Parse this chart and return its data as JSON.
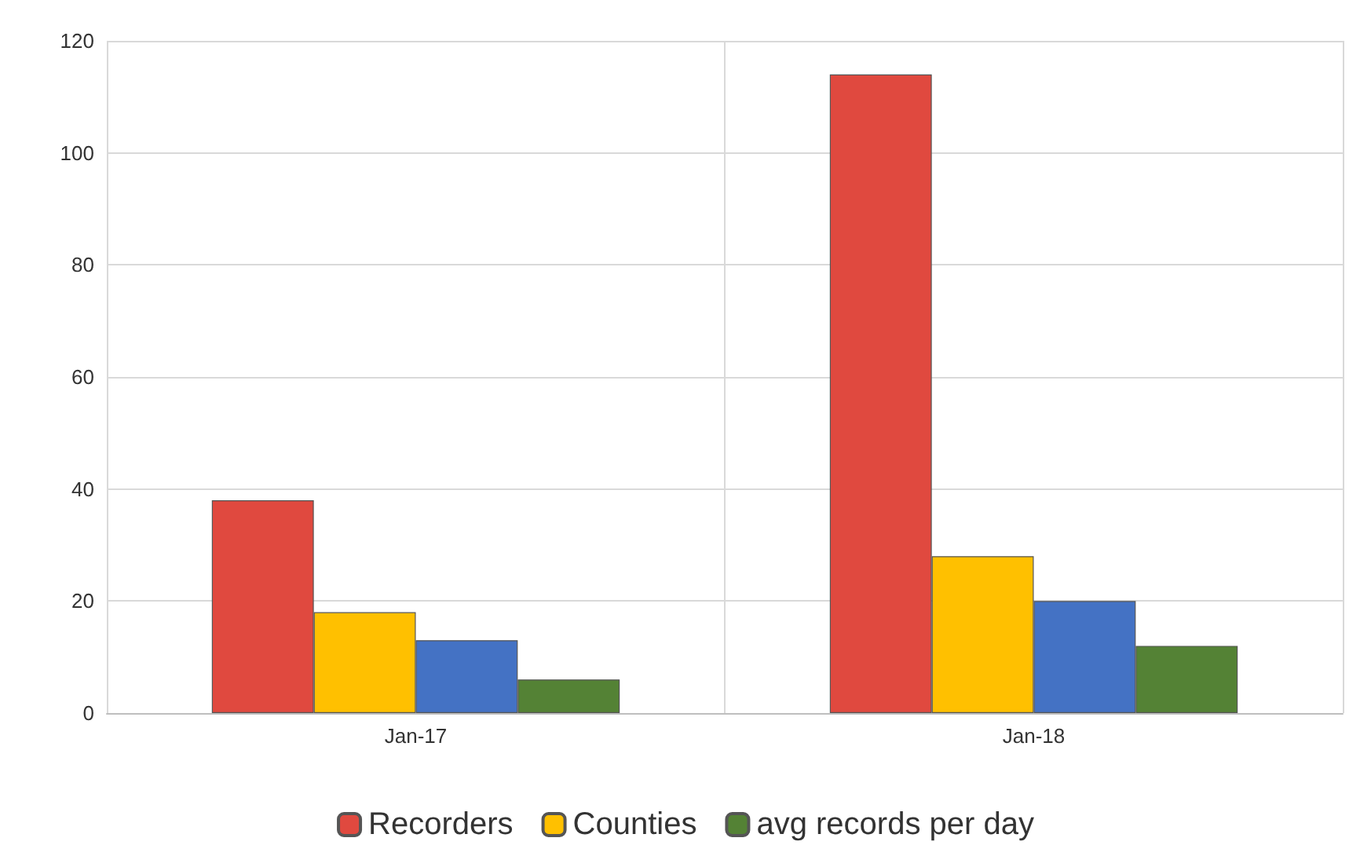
{
  "chart_data": {
    "type": "bar",
    "categories": [
      "Jan-17",
      "Jan-18"
    ],
    "series": [
      {
        "name": "Recorders",
        "color": "#e0493f",
        "values": [
          38,
          114
        ]
      },
      {
        "name": "Counties",
        "color": "#ffc000",
        "values": [
          18,
          28
        ]
      },
      {
        "color": "#4472c4",
        "values": [
          13,
          20
        ]
      },
      {
        "name": "avg records per day",
        "color": "#548235",
        "values": [
          6,
          12
        ]
      }
    ],
    "ylim": [
      0,
      120
    ],
    "yticks": [
      0,
      20,
      40,
      60,
      80,
      100,
      120
    ],
    "grid": true,
    "legend": "bottom"
  }
}
